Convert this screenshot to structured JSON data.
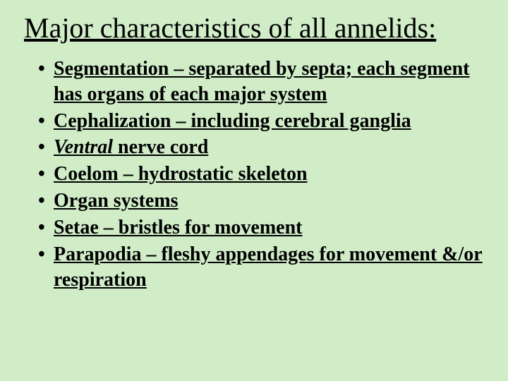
{
  "colors": {
    "background": "#d0edc8",
    "text": "#000000"
  },
  "typography": {
    "family": "Times New Roman",
    "title_fontsize": 40,
    "title_weight": "normal",
    "bullet_fontsize": 28,
    "bullet_weight": "bold",
    "underline": true
  },
  "title": "Major characteristics of all annelids:",
  "bullets": [
    {
      "text": "Segmentation – separated by septa; each segment has organs of each major system"
    },
    {
      "text": "Cephalization – including cerebral ganglia"
    },
    {
      "italic_prefix": "Ventral",
      "rest": " nerve cord"
    },
    {
      "text": "Coelom – hydrostatic skeleton"
    },
    {
      "text": "Organ systems"
    },
    {
      "text": "Setae – bristles for movement"
    },
    {
      "text": "Parapodia – fleshy appendages for movement &/or respiration"
    }
  ]
}
